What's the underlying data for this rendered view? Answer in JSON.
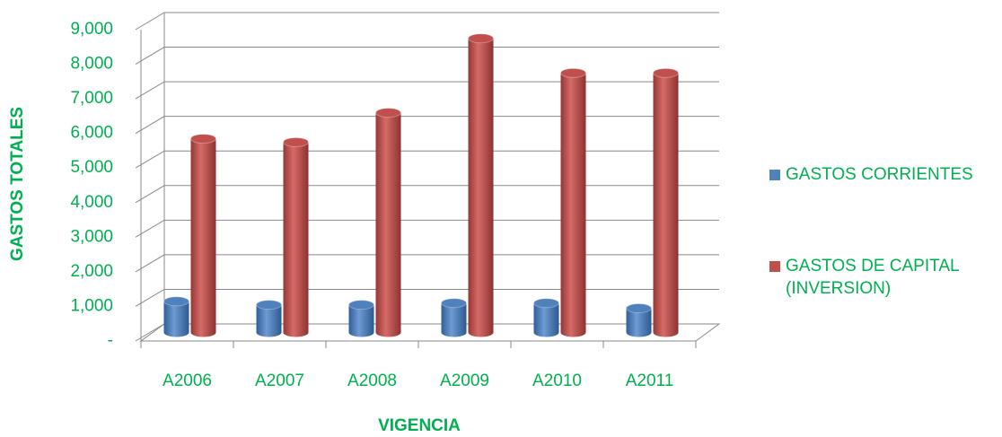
{
  "chart_data": {
    "type": "bar3d",
    "x_label": "VIGENCIA",
    "y_label": "GASTOS TOTALES",
    "categories": [
      "A2006",
      "A2007",
      "A2008",
      "A2009",
      "A2010",
      "A2011"
    ],
    "series": [
      {
        "name": "GASTOS CORRIENTES",
        "color": "#4f81bd",
        "values": [
          900,
          800,
          800,
          850,
          850,
          700
        ]
      },
      {
        "name": "GASTOS DE CAPITAL (INVERSION)",
        "color": "#c0504d",
        "values": [
          5600,
          5500,
          6350,
          8500,
          7500,
          7500
        ]
      }
    ],
    "ylim": [
      0,
      9000
    ],
    "yticks": [
      {
        "value": 0,
        "label": "-"
      },
      {
        "value": 1000,
        "label": "1,000"
      },
      {
        "value": 2000,
        "label": "2,000"
      },
      {
        "value": 3000,
        "label": "3,000"
      },
      {
        "value": 4000,
        "label": "4,000"
      },
      {
        "value": 5000,
        "label": "5,000"
      },
      {
        "value": 6000,
        "label": "6,000"
      },
      {
        "value": 7000,
        "label": "7,000"
      },
      {
        "value": 8000,
        "label": "8,000"
      },
      {
        "value": 9000,
        "label": "9,000"
      }
    ],
    "grid": true,
    "legend": "right"
  }
}
